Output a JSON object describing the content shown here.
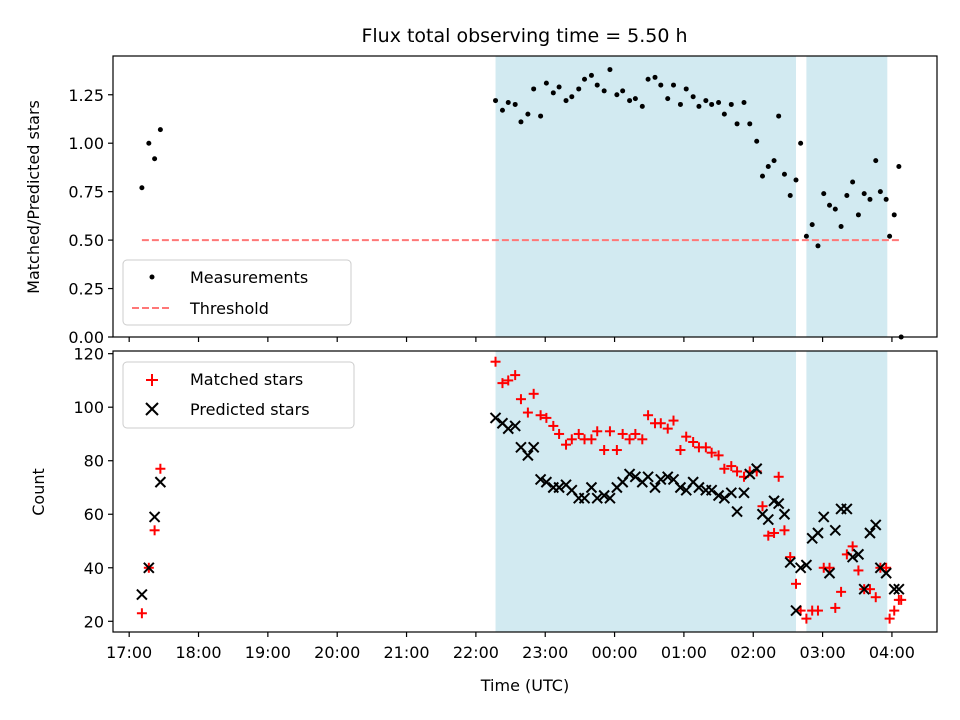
{
  "chart_data": [
    {
      "type": "scatter",
      "title": "Flux total observing time = 5.50 h",
      "xlabel": "",
      "ylabel": "Matched/Predicted stars",
      "xlim": [
        "16:46",
        "04:39"
      ],
      "ylim": [
        0,
        1.45
      ],
      "yticks": [
        "0.00",
        "0.25",
        "0.50",
        "0.75",
        "1.00",
        "1.25"
      ],
      "grid": false,
      "legend_position": "lower-left",
      "shaded_spans": [
        [
          "22:17",
          "02:37"
        ],
        [
          "02:46",
          "03:56"
        ]
      ],
      "shade_color": "#add8e6",
      "series": [
        {
          "name": "Measurements",
          "marker": "dot",
          "color": "#000000",
          "points": [
            [
              "17:11",
              0.77
            ],
            [
              "17:17",
              1.0
            ],
            [
              "17:22",
              0.92
            ],
            [
              "17:27",
              1.07
            ],
            [
              "22:17",
              1.22
            ],
            [
              "22:23",
              1.17
            ],
            [
              "22:28",
              1.21
            ],
            [
              "22:34",
              1.2
            ],
            [
              "22:39",
              1.11
            ],
            [
              "22:45",
              1.15
            ],
            [
              "22:50",
              1.28
            ],
            [
              "22:56",
              1.14
            ],
            [
              "23:01",
              1.31
            ],
            [
              "23:07",
              1.26
            ],
            [
              "23:12",
              1.29
            ],
            [
              "23:18",
              1.22
            ],
            [
              "23:23",
              1.24
            ],
            [
              "23:29",
              1.28
            ],
            [
              "23:34",
              1.33
            ],
            [
              "23:40",
              1.35
            ],
            [
              "23:45",
              1.3
            ],
            [
              "23:51",
              1.27
            ],
            [
              "23:56",
              1.38
            ],
            [
              "00:02",
              1.25
            ],
            [
              "00:07",
              1.27
            ],
            [
              "00:13",
              1.22
            ],
            [
              "00:18",
              1.23
            ],
            [
              "00:24",
              1.19
            ],
            [
              "00:29",
              1.33
            ],
            [
              "00:35",
              1.34
            ],
            [
              "00:40",
              1.3
            ],
            [
              "00:46",
              1.23
            ],
            [
              "00:51",
              1.3
            ],
            [
              "00:57",
              1.2
            ],
            [
              "01:02",
              1.28
            ],
            [
              "01:08",
              1.24
            ],
            [
              "01:13",
              1.19
            ],
            [
              "01:19",
              1.22
            ],
            [
              "01:24",
              1.2
            ],
            [
              "01:30",
              1.21
            ],
            [
              "01:35",
              1.15
            ],
            [
              "01:41",
              1.2
            ],
            [
              "01:46",
              1.1
            ],
            [
              "01:52",
              1.21
            ],
            [
              "01:57",
              1.1
            ],
            [
              "02:03",
              1.01
            ],
            [
              "02:08",
              0.83
            ],
            [
              "02:13",
              0.88
            ],
            [
              "02:18",
              0.91
            ],
            [
              "02:22",
              1.14
            ],
            [
              "02:27",
              0.84
            ],
            [
              "02:32",
              0.73
            ],
            [
              "02:37",
              0.81
            ],
            [
              "02:41",
              1.0
            ],
            [
              "02:46",
              0.52
            ],
            [
              "02:51",
              0.58
            ],
            [
              "02:56",
              0.47
            ],
            [
              "03:01",
              0.74
            ],
            [
              "03:06",
              0.68
            ],
            [
              "03:11",
              0.66
            ],
            [
              "03:16",
              0.57
            ],
            [
              "03:21",
              0.73
            ],
            [
              "03:26",
              0.8
            ],
            [
              "03:31",
              0.63
            ],
            [
              "03:36",
              0.74
            ],
            [
              "03:41",
              0.71
            ],
            [
              "03:46",
              0.91
            ],
            [
              "03:50",
              0.75
            ],
            [
              "03:55",
              0.71
            ],
            [
              "03:58",
              0.52
            ],
            [
              "04:02",
              0.63
            ],
            [
              "04:06",
              0.88
            ],
            [
              "04:08",
              0.0
            ]
          ]
        },
        {
          "name": "Threshold",
          "marker": "dashed-line",
          "color": "#ff7777",
          "points": [
            [
              "17:11",
              0.5
            ],
            [
              "04:08",
              0.5
            ]
          ]
        }
      ]
    },
    {
      "type": "scatter",
      "title": "",
      "xlabel": "Time (UTC)",
      "ylabel": "Count",
      "xlim": [
        "16:46",
        "04:39"
      ],
      "ylim": [
        16,
        121
      ],
      "yticks": [
        "20",
        "40",
        "60",
        "80",
        "100",
        "120"
      ],
      "xticks": [
        "17:00",
        "18:00",
        "19:00",
        "20:00",
        "21:00",
        "22:00",
        "23:00",
        "00:00",
        "01:00",
        "02:00",
        "03:00",
        "04:00"
      ],
      "grid": false,
      "legend_position": "upper-left",
      "shaded_spans": [
        [
          "22:17",
          "02:37"
        ],
        [
          "02:46",
          "03:56"
        ]
      ],
      "shade_color": "#add8e6",
      "series": [
        {
          "name": "Matched stars",
          "marker": "plus",
          "color": "#ff0000",
          "points": [
            [
              "17:11",
              23
            ],
            [
              "17:17",
              40
            ],
            [
              "17:22",
              54
            ],
            [
              "17:27",
              77
            ],
            [
              "22:17",
              117
            ],
            [
              "22:23",
              109
            ],
            [
              "22:28",
              110
            ],
            [
              "22:34",
              112
            ],
            [
              "22:39",
              103
            ],
            [
              "22:45",
              98
            ],
            [
              "22:50",
              105
            ],
            [
              "22:56",
              97
            ],
            [
              "23:01",
              96
            ],
            [
              "23:07",
              93
            ],
            [
              "23:12",
              90
            ],
            [
              "23:18",
              86
            ],
            [
              "23:23",
              88
            ],
            [
              "23:29",
              90
            ],
            [
              "23:34",
              88
            ],
            [
              "23:40",
              88
            ],
            [
              "23:45",
              91
            ],
            [
              "23:51",
              84
            ],
            [
              "23:56",
              91
            ],
            [
              "00:02",
              84
            ],
            [
              "00:07",
              90
            ],
            [
              "00:13",
              88
            ],
            [
              "00:18",
              90
            ],
            [
              "00:24",
              88
            ],
            [
              "00:29",
              97
            ],
            [
              "00:35",
              94
            ],
            [
              "00:40",
              94
            ],
            [
              "00:46",
              92
            ],
            [
              "00:51",
              95
            ],
            [
              "00:57",
              84
            ],
            [
              "01:02",
              89
            ],
            [
              "01:08",
              87
            ],
            [
              "01:13",
              85
            ],
            [
              "01:19",
              85
            ],
            [
              "01:24",
              83
            ],
            [
              "01:30",
              82
            ],
            [
              "01:35",
              77
            ],
            [
              "01:41",
              78
            ],
            [
              "01:46",
              76
            ],
            [
              "01:52",
              74
            ],
            [
              "01:57",
              76
            ],
            [
              "02:03",
              76
            ],
            [
              "02:08",
              63
            ],
            [
              "02:13",
              52
            ],
            [
              "02:18",
              53
            ],
            [
              "02:22",
              74
            ],
            [
              "02:27",
              54
            ],
            [
              "02:32",
              44
            ],
            [
              "02:37",
              34
            ],
            [
              "02:41",
              24
            ],
            [
              "02:46",
              21
            ],
            [
              "02:51",
              24
            ],
            [
              "02:56",
              24
            ],
            [
              "03:01",
              40
            ],
            [
              "03:06",
              40
            ],
            [
              "03:11",
              25
            ],
            [
              "03:16",
              31
            ],
            [
              "03:21",
              45
            ],
            [
              "03:26",
              48
            ],
            [
              "03:31",
              39
            ],
            [
              "03:36",
              32
            ],
            [
              "03:41",
              32
            ],
            [
              "03:46",
              29
            ],
            [
              "03:50",
              40
            ],
            [
              "03:55",
              40
            ],
            [
              "03:58",
              21
            ],
            [
              "04:02",
              24
            ],
            [
              "04:06",
              28
            ],
            [
              "04:08",
              28
            ]
          ]
        },
        {
          "name": "Predicted stars",
          "marker": "x",
          "color": "#000000",
          "points": [
            [
              "17:11",
              30
            ],
            [
              "17:17",
              40
            ],
            [
              "17:22",
              59
            ],
            [
              "17:27",
              72
            ],
            [
              "22:17",
              96
            ],
            [
              "22:23",
              94
            ],
            [
              "22:28",
              92
            ],
            [
              "22:34",
              93
            ],
            [
              "22:39",
              85
            ],
            [
              "22:45",
              82
            ],
            [
              "22:50",
              85
            ],
            [
              "22:56",
              73
            ],
            [
              "23:01",
              72
            ],
            [
              "23:07",
              70
            ],
            [
              "23:12",
              70
            ],
            [
              "23:18",
              71
            ],
            [
              "23:23",
              69
            ],
            [
              "23:29",
              66
            ],
            [
              "23:34",
              66
            ],
            [
              "23:40",
              70
            ],
            [
              "23:45",
              66
            ],
            [
              "23:51",
              67
            ],
            [
              "23:56",
              66
            ],
            [
              "00:02",
              70
            ],
            [
              "00:07",
              72
            ],
            [
              "00:13",
              75
            ],
            [
              "00:18",
              74
            ],
            [
              "00:24",
              72
            ],
            [
              "00:29",
              74
            ],
            [
              "00:35",
              70
            ],
            [
              "00:40",
              73
            ],
            [
              "00:46",
              74
            ],
            [
              "00:51",
              73
            ],
            [
              "00:57",
              70
            ],
            [
              "01:02",
              69
            ],
            [
              "01:08",
              72
            ],
            [
              "01:13",
              70
            ],
            [
              "01:19",
              69
            ],
            [
              "01:24",
              69
            ],
            [
              "01:30",
              67
            ],
            [
              "01:35",
              66
            ],
            [
              "01:41",
              68
            ],
            [
              "01:46",
              61
            ],
            [
              "01:52",
              68
            ],
            [
              "01:57",
              75
            ],
            [
              "02:03",
              77
            ],
            [
              "02:08",
              60
            ],
            [
              "02:13",
              58
            ],
            [
              "02:18",
              65
            ],
            [
              "02:22",
              64
            ],
            [
              "02:27",
              60
            ],
            [
              "02:32",
              42
            ],
            [
              "02:37",
              24
            ],
            [
              "02:41",
              40
            ],
            [
              "02:46",
              41
            ],
            [
              "02:51",
              51
            ],
            [
              "02:56",
              53
            ],
            [
              "03:01",
              59
            ],
            [
              "03:06",
              38
            ],
            [
              "03:11",
              54
            ],
            [
              "03:16",
              62
            ],
            [
              "03:21",
              62
            ],
            [
              "03:26",
              44
            ],
            [
              "03:31",
              45
            ],
            [
              "03:36",
              32
            ],
            [
              "03:41",
              53
            ],
            [
              "03:46",
              56
            ],
            [
              "03:50",
              40
            ],
            [
              "03:55",
              38
            ],
            [
              "04:02",
              32
            ],
            [
              "04:06",
              32
            ]
          ]
        }
      ]
    }
  ]
}
